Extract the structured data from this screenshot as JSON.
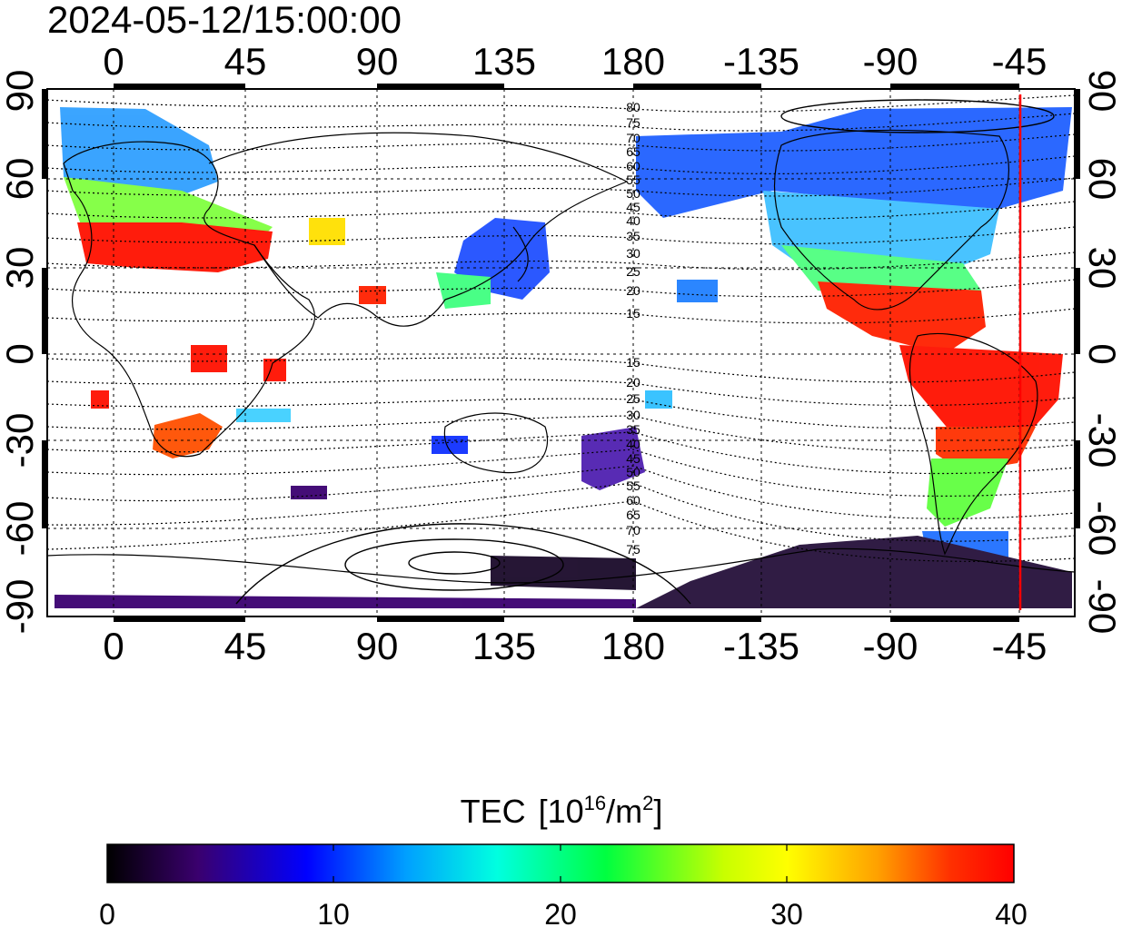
{
  "timestamp": "2024-05-12/15:00:00",
  "x_tick_labels": [
    "0",
    "45",
    "90",
    "135",
    "180",
    "-135",
    "-90",
    "-45"
  ],
  "y_tick_labels": [
    "90",
    "60",
    "30",
    "0",
    "-30",
    "-60",
    "-90"
  ],
  "contour_labels_north": [
    "80",
    "75",
    "70",
    "65",
    "60",
    "55",
    "50",
    "45",
    "40",
    "35",
    "30",
    "25",
    "20",
    "15"
  ],
  "contour_labels_south": [
    "15",
    "20",
    "25",
    "30",
    "35",
    "40",
    "45",
    "50",
    "55",
    "60",
    "65",
    "70",
    "75"
  ],
  "colorbar": {
    "title": "TEC",
    "unit_prefix": "[10",
    "unit_exp1": "16",
    "unit_mid": "/m",
    "unit_exp2": "2",
    "unit_suffix": "]",
    "tick_labels": [
      "0",
      "10",
      "20",
      "30",
      "40"
    ],
    "range": [
      0,
      40
    ],
    "colors": [
      "#000000",
      "#3a006e",
      "#0000ff",
      "#00a0ff",
      "#00ffe0",
      "#00ff40",
      "#c8ff00",
      "#ffff00",
      "#ffa000",
      "#ff3000",
      "#ff0000"
    ]
  },
  "map": {
    "central_longitude_marker": -45,
    "marker_color": "#ff0000",
    "lon_range": [
      -20,
      340
    ],
    "lat_range": [
      -90,
      90
    ]
  }
}
